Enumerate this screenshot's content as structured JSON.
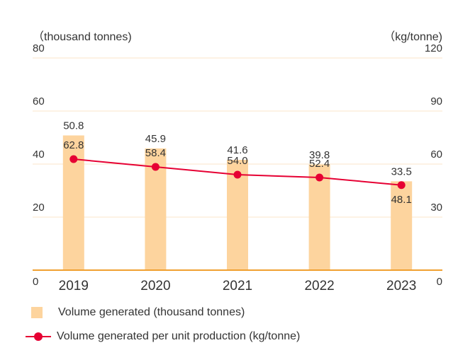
{
  "colors": {
    "bar": "#FDD49E",
    "line": "#E60033",
    "axis": "#F0A030",
    "grid": "#FBE6C8"
  },
  "chart_data": {
    "type": "bar+line",
    "categories": [
      "2019",
      "2020",
      "2021",
      "2022",
      "2023"
    ],
    "left_axis_unit": "（thousand tonnes)",
    "right_axis_unit": "（kg/tonne)",
    "ylim_left": [
      0,
      80
    ],
    "ylim_right": [
      0,
      120
    ],
    "yticks_left": [
      "0",
      "20",
      "40",
      "60",
      "80"
    ],
    "yticks_right": [
      "0",
      "30",
      "60",
      "90",
      "120"
    ],
    "grid": true,
    "series": [
      {
        "name": "Volume generated (thousand tonnes)",
        "type": "bar",
        "axis": "left",
        "values": [
          50.8,
          45.9,
          41.6,
          39.8,
          33.5
        ],
        "labels": [
          "50.8",
          "45.9",
          "41.6",
          "39.8",
          "33.5"
        ]
      },
      {
        "name": "Volume generated per unit production (kg/tonne)",
        "type": "line",
        "axis": "right",
        "values": [
          62.8,
          58.4,
          54.0,
          52.4,
          48.1
        ],
        "labels": [
          "62.8",
          "58.4",
          "54.0",
          "52.4",
          "48.1"
        ]
      }
    ],
    "legend_position": "bottom-left"
  }
}
